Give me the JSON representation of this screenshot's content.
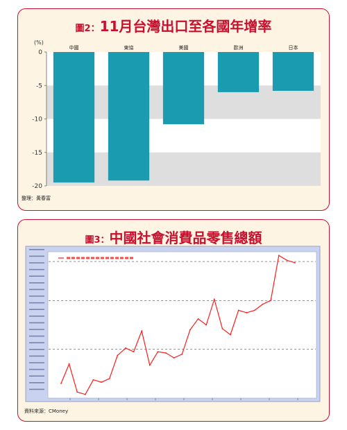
{
  "chart1": {
    "title_prefix": "圖2：",
    "title": "11月台灣出口至各國年增率",
    "unit_label": "(%)",
    "source": "整理：黃春富",
    "colors": {
      "bar": "#1a9bb0",
      "band": "#dedede",
      "plot_bg": "#ffffff",
      "title": "#c8102e"
    }
  },
  "chart2": {
    "title_prefix": "圖3：",
    "title": "中國社會消費品零售總額",
    "source": "資料來源：CMoney",
    "colors": {
      "line": "#ff1a1a",
      "plot_bg": "#ffffff",
      "frame_bg": "#c9d2ee",
      "title": "#c8102e"
    }
  },
  "chart_data": [
    {
      "type": "bar",
      "title": "11月台灣出口至各國年增率",
      "ylabel": "(%)",
      "categories": [
        "中國",
        "東協",
        "美國",
        "歐洲",
        "日本"
      ],
      "values": [
        -19.5,
        -19.2,
        -10.8,
        -6.0,
        -5.8
      ],
      "ylim": [
        -20,
        0
      ],
      "yticks": [
        0,
        -5,
        -10,
        -15,
        -20
      ],
      "bands": [
        [
          -5,
          -10
        ],
        [
          -15,
          -20
        ]
      ]
    },
    {
      "type": "line",
      "title": "中國社會消費品零售總額",
      "x": [
        1,
        2,
        3,
        4,
        5,
        6,
        7,
        8,
        9,
        10,
        11,
        12,
        13,
        14,
        15,
        16,
        17,
        18,
        19,
        20,
        21,
        22,
        23,
        24,
        25,
        26,
        27,
        28,
        29,
        30
      ],
      "values": [
        12,
        28,
        5,
        3,
        15,
        13,
        16,
        35,
        41,
        38,
        55,
        27,
        38,
        37,
        33,
        36,
        56,
        65,
        60,
        81,
        57,
        52,
        72,
        70,
        72,
        77,
        80,
        117,
        113,
        111
      ],
      "ylim": [
        0,
        120
      ],
      "grid": "dashed horizontal",
      "legend": "top-left"
    }
  ]
}
